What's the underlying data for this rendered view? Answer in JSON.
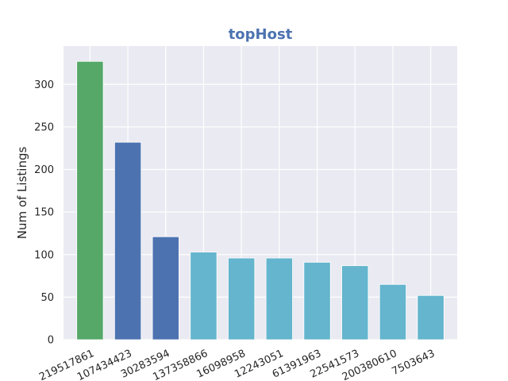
{
  "chart_data": {
    "type": "bar",
    "title": "topHost",
    "xlabel": "",
    "ylabel": "Num of Listings",
    "categories": [
      "219517861",
      "107434423",
      "30283594",
      "137358866",
      "16098958",
      "12243051",
      "61391963",
      "22541573",
      "200380610",
      "7503643"
    ],
    "values": [
      327,
      232,
      121,
      103,
      96,
      96,
      91,
      87,
      65,
      52
    ],
    "bar_colors": [
      "#55a868",
      "#4c72b0",
      "#4c72b0",
      "#64b5cd",
      "#64b5cd",
      "#64b5cd",
      "#64b5cd",
      "#64b5cd",
      "#64b5cd",
      "#64b5cd"
    ],
    "ylim": [
      0,
      345
    ],
    "yticks": [
      0,
      50,
      100,
      150,
      200,
      250,
      300
    ],
    "grid": true,
    "colors": {
      "title": "#4c72b0",
      "background": "#eaeaf2",
      "grid": "#ffffff"
    }
  }
}
